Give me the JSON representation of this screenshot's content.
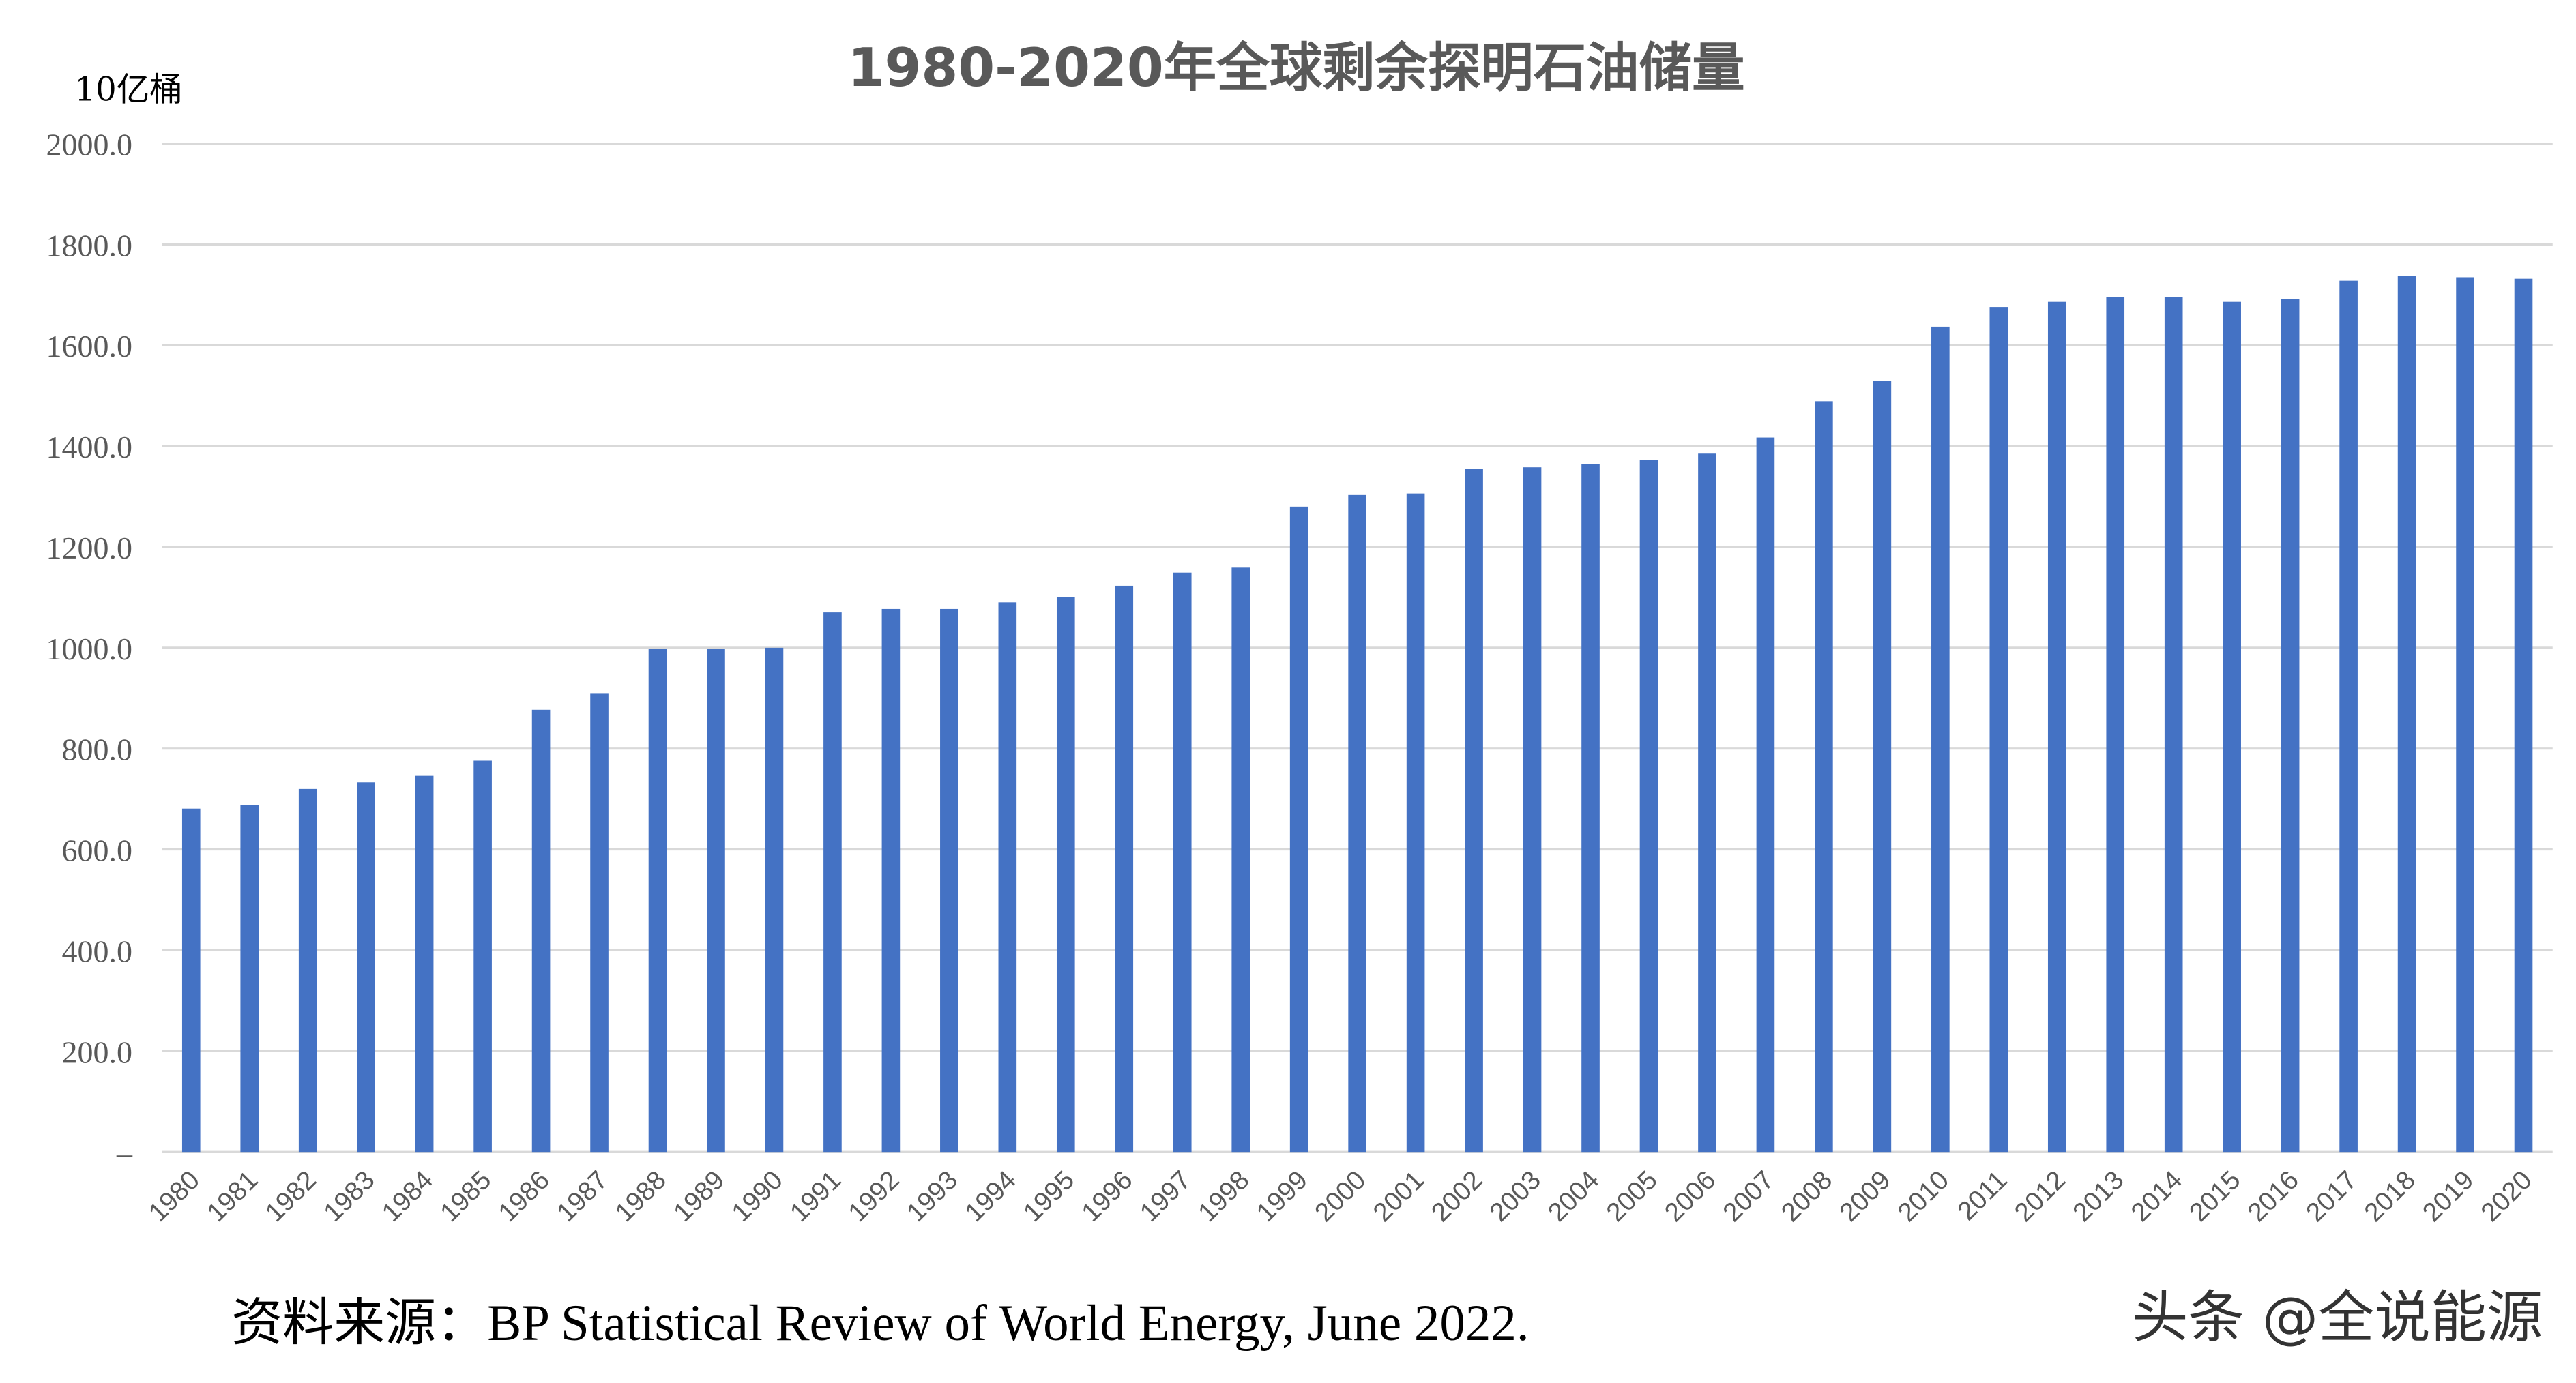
{
  "chart_data": {
    "type": "bar",
    "title": "1980-2020年全球剩余探明石油储量",
    "ylabel": "10亿桶",
    "xlabel": "",
    "ylim": [
      0,
      2000
    ],
    "grid": true,
    "bar_color": "#4472C4",
    "yticks": [
      "–",
      "200.0",
      "400.0",
      "600.0",
      "800.0",
      "1000.0",
      "1200.0",
      "1400.0",
      "1600.0",
      "1800.0",
      "2000.0"
    ],
    "categories": [
      "1980",
      "1981",
      "1982",
      "1983",
      "1984",
      "1985",
      "1986",
      "1987",
      "1988",
      "1989",
      "1990",
      "1991",
      "1992",
      "1993",
      "1994",
      "1995",
      "1996",
      "1997",
      "1998",
      "1999",
      "2000",
      "2001",
      "2002",
      "2003",
      "2004",
      "2005",
      "2006",
      "2007",
      "2008",
      "2009",
      "2010",
      "2011",
      "2012",
      "2013",
      "2014",
      "2015",
      "2016",
      "2017",
      "2018",
      "2019",
      "2020"
    ],
    "values": [
      681,
      688,
      720,
      733,
      746,
      776,
      877,
      910,
      998,
      998,
      1000,
      1070,
      1077,
      1077,
      1090,
      1100,
      1123,
      1149,
      1159,
      1280,
      1303,
      1306,
      1355,
      1358,
      1365,
      1372,
      1385,
      1417,
      1489,
      1529,
      1637,
      1676,
      1686,
      1696,
      1696,
      1686,
      1692,
      1728,
      1738,
      1735,
      1732
    ]
  },
  "source": "资料来源：BP Statistical Review of World Energy, June 2022.",
  "watermark": "头条 @全说能源"
}
